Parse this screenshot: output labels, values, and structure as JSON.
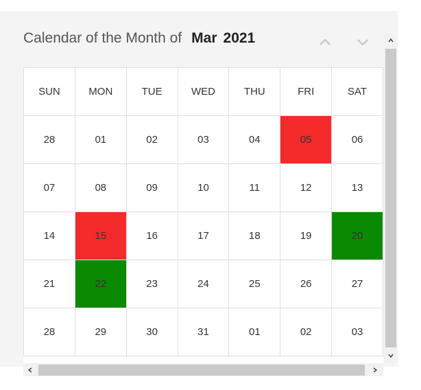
{
  "header": {
    "title": "Calendar of the Month of",
    "month": "Mar",
    "year": "2021"
  },
  "nav": {
    "prev_icon": "chevron-up-icon",
    "next_icon": "chevron-down-icon"
  },
  "colors": {
    "red": "#f52a2a",
    "green": "#0a8a00",
    "border": "#dddddd"
  },
  "weekdays": [
    "SUN",
    "MON",
    "TUE",
    "WED",
    "THU",
    "FRI",
    "SAT"
  ],
  "weeks": [
    [
      "28",
      "01",
      "02",
      "03",
      "04",
      "05",
      "06"
    ],
    [
      "07",
      "08",
      "09",
      "10",
      "11",
      "12",
      "13"
    ],
    [
      "14",
      "15",
      "16",
      "17",
      "18",
      "19",
      "20"
    ],
    [
      "21",
      "22",
      "23",
      "24",
      "25",
      "26",
      "27"
    ],
    [
      "28",
      "29",
      "30",
      "31",
      "01",
      "02",
      "03"
    ]
  ],
  "highlights": {
    "red": [
      "0-5",
      "2-1"
    ],
    "green": [
      "2-6",
      "3-1"
    ]
  }
}
